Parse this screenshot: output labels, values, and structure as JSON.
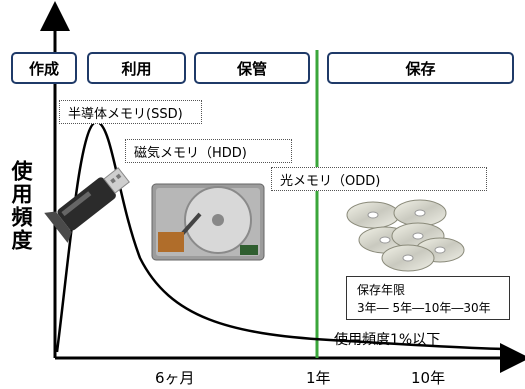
{
  "phases": {
    "create": "作成",
    "use": "利用",
    "store": "保管",
    "archive": "保存"
  },
  "media": {
    "ssd": "半導体メモリ(SSD)",
    "hdd": "磁気メモリ（HDD)",
    "odd": "光メモリ（ODD)"
  },
  "y_axis_label": "使用頻度",
  "x_ticks": {
    "six_months": "6ヶ月",
    "one_year": "1年",
    "ten_years": "10年"
  },
  "retention": {
    "title": "保存年限",
    "values": "3年― 5年―10年―30年"
  },
  "low_usage_note": "使用頻度1%以下",
  "colors": {
    "phase_border": "#1f3a68",
    "divider": "#3aa63a"
  }
}
